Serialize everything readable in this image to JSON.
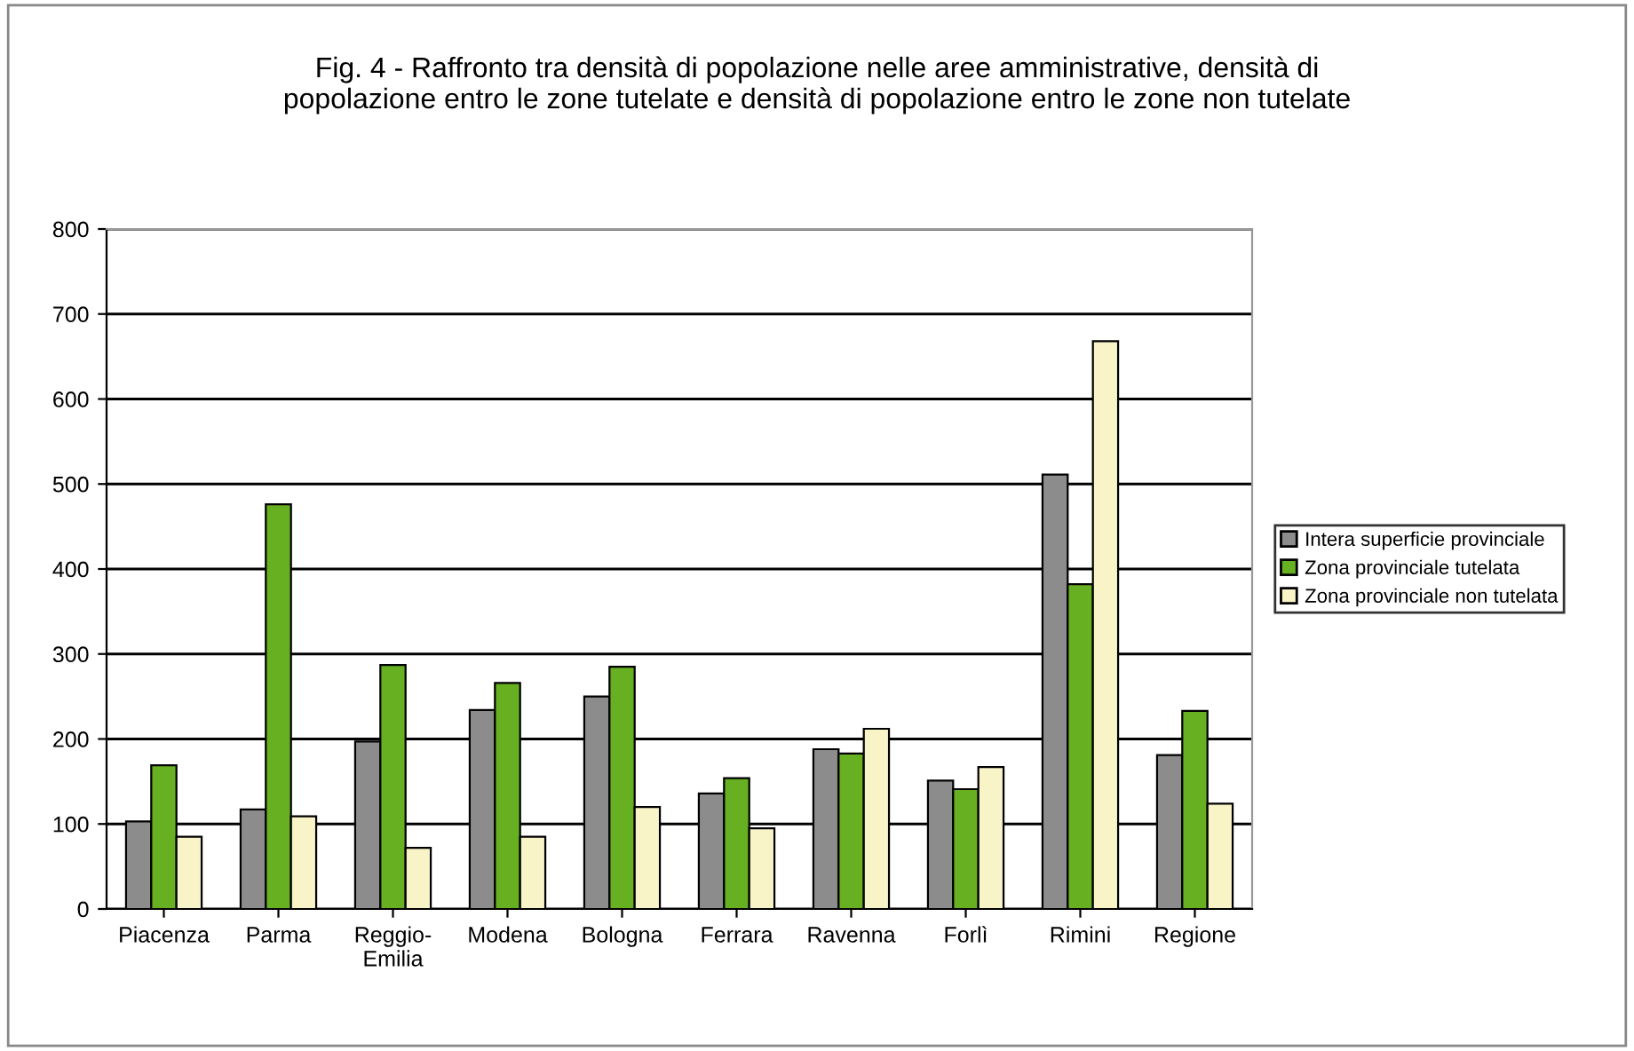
{
  "chart_data": {
    "type": "bar",
    "title": "Fig. 4 - Raffronto tra densità di popolazione nelle aree amministrative, densità di\npopolazione entro le zone tutelate e densità di popolazione entro le zone non tutelate",
    "categories": [
      "Piacenza",
      "Parma",
      "Reggio-\nEmilia",
      "Modena",
      "Bologna",
      "Ferrara",
      "Ravenna",
      "Forlì",
      "Rimini",
      "Regione"
    ],
    "series": [
      {
        "name": "Intera superficie provinciale",
        "color": "#8c8c8c",
        "values": [
          103,
          117,
          197,
          234,
          250,
          136,
          188,
          151,
          511,
          181
        ]
      },
      {
        "name": "Zona provinciale tutelata",
        "color": "#66b022",
        "values": [
          169,
          476,
          287,
          266,
          285,
          154,
          183,
          141,
          382,
          233
        ]
      },
      {
        "name": "Zona provinciale non tutelata",
        "color": "#f8f4c8",
        "values": [
          85,
          109,
          72,
          85,
          120,
          95,
          212,
          167,
          668,
          124
        ]
      }
    ],
    "ylim": [
      0,
      800
    ],
    "yticks": [
      0,
      100,
      200,
      300,
      400,
      500,
      600,
      700,
      800
    ],
    "grid": "y",
    "legend": "right"
  }
}
